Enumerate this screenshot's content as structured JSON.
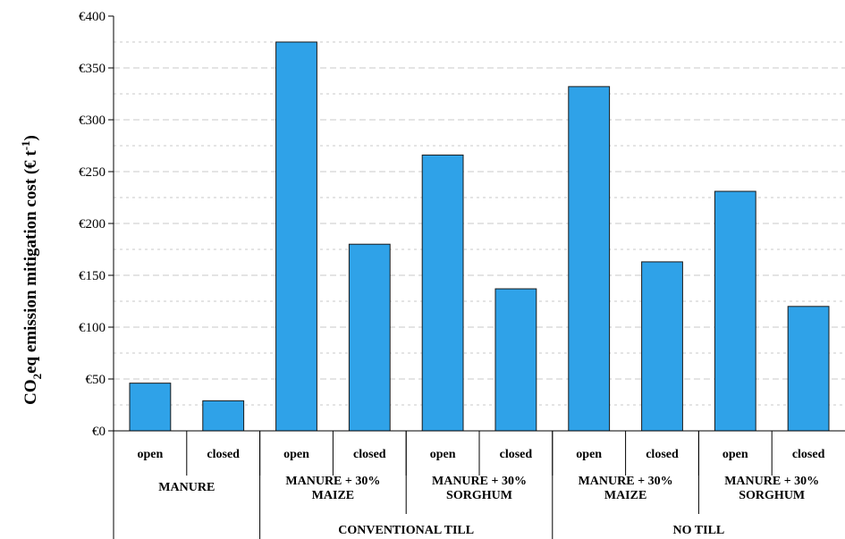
{
  "chart_data": {
    "type": "bar",
    "title": "",
    "ylabel_parts": {
      "main": "CO",
      "sub": "2",
      "rest": "eq emission mitigation cost (€ t",
      "sup": "-1",
      "end": ")"
    },
    "ylim": [
      0,
      400
    ],
    "yticks": [
      "€0",
      "€50",
      "€100",
      "€150",
      "€200",
      "€250",
      "€300",
      "€350",
      "€400"
    ],
    "ytick_values": [
      0,
      50,
      100,
      150,
      200,
      250,
      300,
      350,
      400
    ],
    "grid": "horizontal-dashed",
    "bar_color": "#2fa2e8",
    "categories": [
      "open",
      "closed",
      "open",
      "closed",
      "open",
      "closed",
      "open",
      "closed",
      "open",
      "closed"
    ],
    "values": [
      46,
      29,
      375,
      180,
      266,
      137,
      332,
      163,
      231,
      120
    ],
    "groups_level2": [
      {
        "lines": [
          "MANURE"
        ],
        "span": 2
      },
      {
        "lines": [
          "MANURE + 30%",
          "MAIZE"
        ],
        "span": 2
      },
      {
        "lines": [
          "MANURE + 30%",
          "SORGHUM"
        ],
        "span": 2
      },
      {
        "lines": [
          "MANURE + 30%",
          "MAIZE"
        ],
        "span": 2
      },
      {
        "lines": [
          "MANURE + 30%",
          "SORGHUM"
        ],
        "span": 2
      }
    ],
    "groups_level3": [
      {
        "label": "",
        "span": 2
      },
      {
        "label": "CONVENTIONAL TILL",
        "span": 4
      },
      {
        "label": "NO TILL",
        "span": 4
      }
    ]
  }
}
